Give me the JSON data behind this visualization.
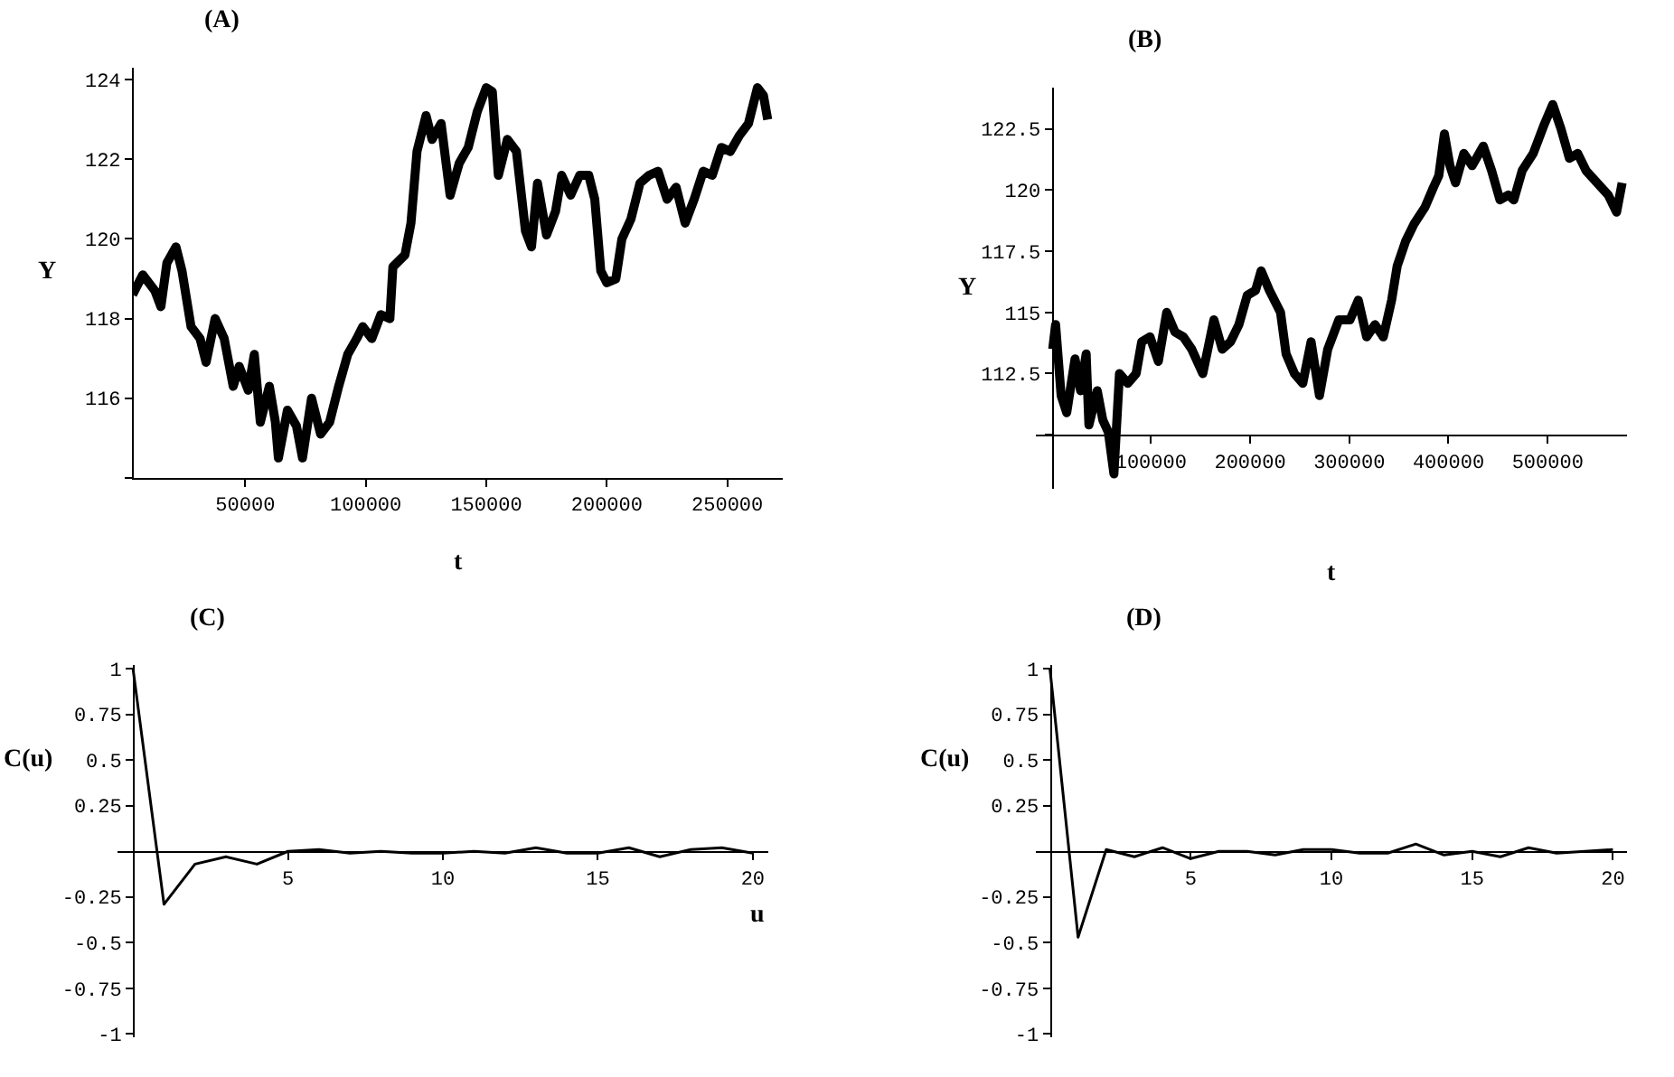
{
  "chart_data": [
    {
      "type": "line",
      "title": "(A)",
      "xlabel": "t",
      "ylabel": "Y",
      "xlim": [
        3000,
        273000
      ],
      "ylim": [
        114,
        124.3
      ],
      "xticks": [
        50000,
        100000,
        150000,
        200000,
        250000
      ],
      "yticks": [
        {
          "value": 114,
          "label": null
        },
        116,
        118,
        120,
        122,
        124
      ],
      "x": [
        3250,
        7500,
        12500,
        15000,
        17500,
        21250,
        23750,
        27500,
        31250,
        33750,
        37500,
        41250,
        45000,
        47500,
        51250,
        53750,
        56250,
        60000,
        62500,
        63750,
        67500,
        71250,
        73750,
        77500,
        81250,
        85000,
        88750,
        92500,
        96250,
        98750,
        102500,
        106250,
        110000,
        111250,
        116250,
        118750,
        121250,
        125000,
        127500,
        131250,
        135000,
        138750,
        142500,
        146250,
        150000,
        152500,
        155000,
        158750,
        162500,
        166250,
        168750,
        171250,
        175000,
        178750,
        181250,
        185000,
        188750,
        192500,
        195000,
        197500,
        200000,
        203750,
        206250,
        210000,
        213750,
        217500,
        221250,
        225000,
        228750,
        232500,
        236250,
        240000,
        243750,
        247500,
        251250,
        255000,
        258750,
        262500,
        265000,
        266750
      ],
      "series": [
        {
          "color": "#000000",
          "values": [
            118.6,
            119.1,
            118.7,
            118.3,
            119.4,
            119.8,
            119.2,
            117.8,
            117.5,
            116.9,
            118.0,
            117.5,
            116.3,
            116.8,
            116.2,
            117.1,
            115.4,
            116.3,
            115.4,
            114.5,
            115.7,
            115.3,
            114.5,
            116.0,
            115.1,
            115.4,
            116.3,
            117.1,
            117.5,
            117.8,
            117.5,
            118.1,
            118.0,
            119.3,
            119.6,
            120.4,
            122.2,
            123.1,
            122.5,
            122.9,
            121.1,
            121.9,
            122.3,
            123.2,
            123.8,
            123.7,
            121.6,
            122.5,
            122.2,
            120.2,
            119.8,
            121.4,
            120.1,
            120.7,
            121.6,
            121.1,
            121.6,
            121.6,
            121.0,
            119.2,
            118.9,
            119.0,
            120.0,
            120.5,
            121.4,
            121.6,
            121.7,
            121.0,
            121.3,
            120.4,
            121.0,
            121.7,
            121.6,
            122.3,
            122.2,
            122.6,
            122.9,
            123.8,
            123.6,
            123.0
          ]
        }
      ]
    },
    {
      "type": "line",
      "title": "(B)",
      "xlabel": "t",
      "ylabel": "Y",
      "xlim": [
        -16000,
        580000
      ],
      "ylim": [
        107.8,
        124.2
      ],
      "xticks": [
        100000,
        200000,
        300000,
        400000,
        500000
      ],
      "yticks": [
        {
          "value": 110,
          "label": null
        },
        112.5,
        115,
        117.5,
        120,
        122.5
      ],
      "x": [
        1000,
        3900,
        9500,
        15100,
        23500,
        29100,
        34700,
        37500,
        45900,
        51500,
        57100,
        62700,
        68300,
        76700,
        85100,
        90700,
        99100,
        107500,
        115900,
        124300,
        132700,
        141100,
        152300,
        163500,
        171900,
        180300,
        188700,
        197100,
        205500,
        211100,
        219500,
        230700,
        236300,
        244700,
        253100,
        261500,
        269900,
        278300,
        289500,
        300700,
        309100,
        317500,
        325900,
        334300,
        342700,
        348300,
        356700,
        365100,
        376300,
        384700,
        390300,
        395900,
        401500,
        407100,
        415500,
        423900,
        435100,
        443500,
        451900,
        460300,
        465900,
        474300,
        485500,
        496700,
        505100,
        513500,
        521900,
        530300,
        538700,
        549900,
        561100,
        569500,
        575100
      ],
      "series": [
        {
          "color": "#000000",
          "values": [
            113.5,
            114.5,
            111.6,
            110.9,
            113.1,
            111.8,
            113.3,
            110.4,
            111.8,
            110.6,
            110.1,
            108.4,
            112.5,
            112.1,
            112.5,
            113.8,
            114.0,
            113.0,
            115.0,
            114.2,
            114.0,
            113.5,
            112.5,
            114.7,
            113.5,
            113.8,
            114.5,
            115.7,
            115.9,
            116.7,
            115.9,
            115.0,
            113.3,
            112.5,
            112.1,
            113.8,
            111.6,
            113.5,
            114.7,
            114.7,
            115.5,
            114.0,
            114.5,
            114.0,
            115.5,
            116.9,
            117.9,
            118.6,
            119.3,
            120.1,
            120.6,
            122.3,
            121.0,
            120.3,
            121.5,
            121.0,
            121.8,
            120.8,
            119.6,
            119.8,
            119.6,
            120.8,
            121.5,
            122.7,
            123.5,
            122.5,
            121.3,
            121.5,
            120.8,
            120.3,
            119.8,
            119.1,
            120.3
          ]
        }
      ]
    },
    {
      "type": "line",
      "title": "(C)",
      "xlabel": "u",
      "ylabel": "C(u)",
      "xlim": [
        -0.5,
        20.5
      ],
      "ylim": [
        -1.02,
        1.02
      ],
      "xticks": [
        5,
        10,
        15,
        20
      ],
      "yticks": [
        -1,
        -0.75,
        -0.5,
        -0.25,
        0.25,
        0.5,
        0.75,
        1
      ],
      "x": [
        0,
        1,
        2,
        3,
        4,
        5,
        6,
        7,
        8,
        9,
        10,
        11,
        12,
        13,
        14,
        15,
        16,
        17,
        18,
        19,
        20
      ],
      "series": [
        {
          "color": "#000000",
          "values": [
            1,
            -0.29,
            -0.07,
            -0.03,
            -0.07,
            0.0,
            0.01,
            -0.01,
            0.0,
            -0.01,
            -0.01,
            0.0,
            -0.01,
            0.02,
            -0.01,
            -0.01,
            0.02,
            -0.03,
            0.01,
            0.02,
            -0.01
          ]
        }
      ]
    },
    {
      "type": "line",
      "title": "(D)",
      "ylabel": "C(u)",
      "xlim": [
        -0.5,
        20.5
      ],
      "ylim": [
        -1.02,
        1.02
      ],
      "xticks": [
        5,
        10,
        15,
        20
      ],
      "yticks": [
        -1,
        -0.75,
        -0.5,
        -0.25,
        0.25,
        0.5,
        0.75,
        1
      ],
      "x": [
        0,
        1,
        2,
        3,
        4,
        5,
        6,
        7,
        8,
        9,
        10,
        11,
        12,
        13,
        14,
        15,
        16,
        17,
        18,
        19,
        20
      ],
      "series": [
        {
          "color": "#000000",
          "values": [
            1,
            -0.47,
            0.01,
            -0.03,
            0.02,
            -0.04,
            0.0,
            0.0,
            -0.02,
            0.01,
            0.01,
            -0.01,
            -0.01,
            0.04,
            -0.02,
            0.0,
            -0.03,
            0.02,
            -0.01,
            0.0,
            0.01
          ]
        }
      ]
    }
  ]
}
